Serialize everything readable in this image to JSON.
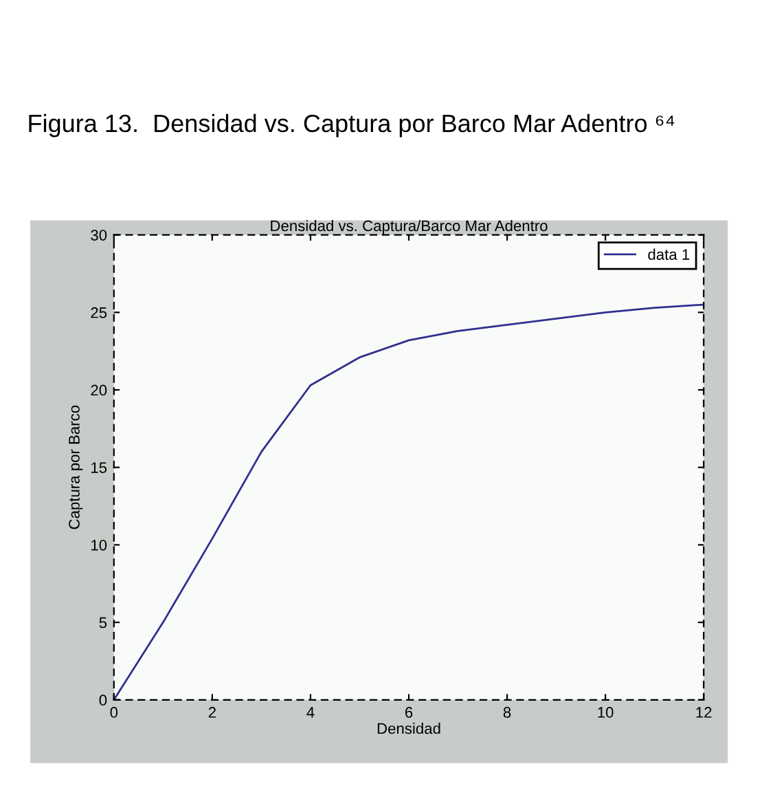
{
  "chart_data": {
    "type": "line",
    "title": "Figura 13.  Densidad vs. Captura por Barco Mar Adentro ⁶⁴",
    "subtitle": "Densidad vs. Captura/Barco Mar Adentro",
    "xlabel": "Densidad",
    "ylabel": "Captura por Barco",
    "x": [
      0,
      1,
      2,
      3,
      4,
      5,
      6,
      7,
      8,
      9,
      10,
      11,
      12
    ],
    "series": [
      {
        "name": "data 1",
        "color": "#2f2f8f",
        "values": [
          0,
          5.0,
          10.4,
          16.0,
          20.3,
          22.1,
          23.2,
          23.8,
          24.2,
          24.6,
          25.0,
          25.3,
          25.5
        ]
      }
    ],
    "xlim": [
      0,
      12
    ],
    "ylim": [
      0,
      30
    ],
    "xticks": [
      0,
      2,
      4,
      6,
      8,
      10,
      12
    ],
    "yticks": [
      0,
      5,
      10,
      15,
      20,
      25,
      30
    ],
    "grid": false,
    "legend": "top right",
    "marker": "none",
    "line_style": "solid"
  }
}
